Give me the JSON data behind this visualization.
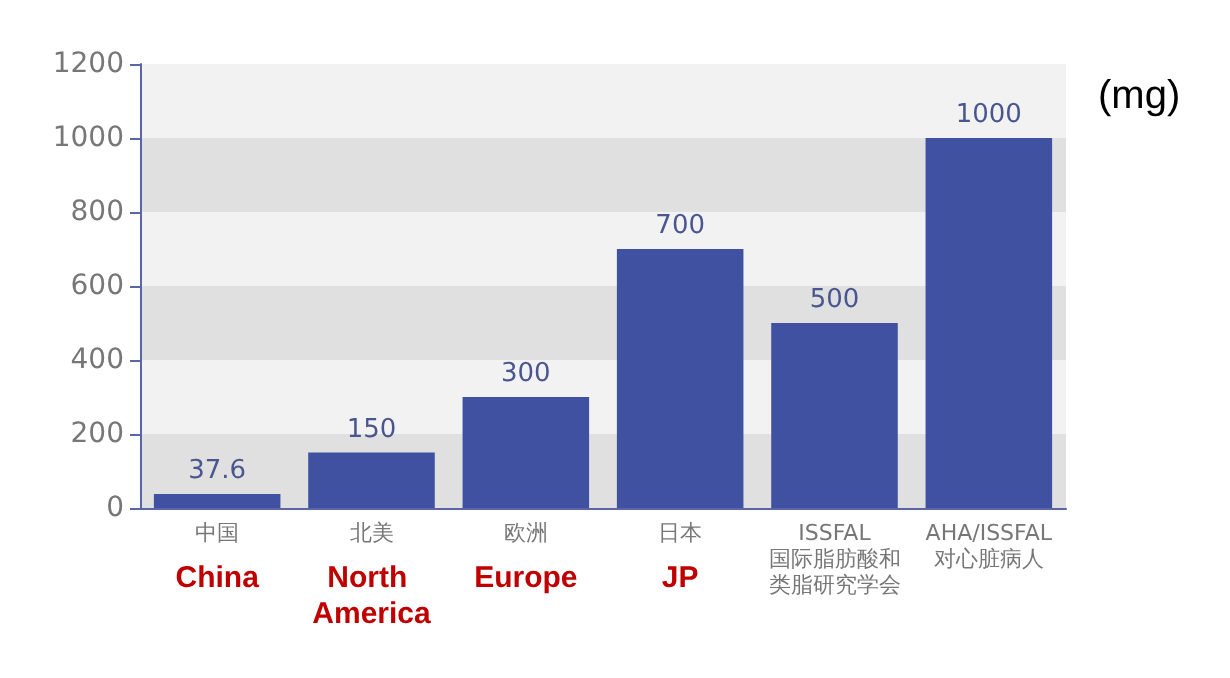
{
  "chart_data": {
    "type": "bar",
    "ylabel": "(mg)",
    "categories": [
      "中国",
      "北美",
      "欧洲",
      "日本",
      "ISSFAL\n国际脂肪酸和类脂研究学会",
      "AHA/ISSFAL\n对心脏病人"
    ],
    "values": [
      37.6,
      150,
      300,
      700,
      500,
      1000
    ],
    "color": "#3f51a0",
    "ylim": [
      0,
      1200
    ],
    "yticks": [
      0,
      200,
      400,
      600,
      800,
      1000,
      1200
    ],
    "data_labels": true,
    "annotations": [
      "China",
      "North America",
      "Europe",
      "JP"
    ]
  }
}
